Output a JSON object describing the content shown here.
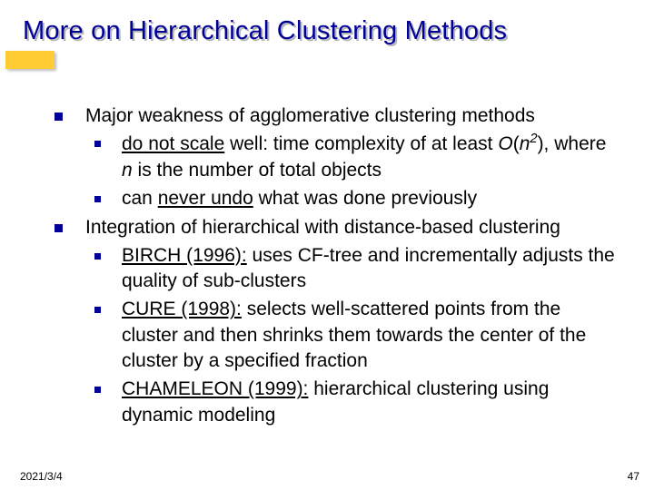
{
  "colors": {
    "title_color": "#000099",
    "bullet_color": "#000099",
    "accent_bg": "#ffcc33",
    "shadow_color": "#b5b5b5",
    "text_color": "#000000",
    "background": "#ffffff"
  },
  "typography": {
    "title_fontsize": 29,
    "body_fontsize": 21,
    "footer_fontsize": 12,
    "font_family": "Tahoma, Verdana, sans-serif"
  },
  "title": "More on Hierarchical Clustering Methods",
  "bullets": [
    {
      "text": "Major weakness of agglomerative clustering methods",
      "children": [
        {
          "segments": [
            {
              "t": "do not scale",
              "style": "underline"
            },
            {
              "t": " well: time complexity of at least "
            },
            {
              "t": "O",
              "style": "italic"
            },
            {
              "t": "("
            },
            {
              "t": "n",
              "style": "italic"
            },
            {
              "t": "2",
              "style": "sup"
            },
            {
              "t": "), where "
            },
            {
              "t": "n",
              "style": "italic"
            },
            {
              "t": " is the number of total objects"
            }
          ]
        },
        {
          "segments": [
            {
              "t": "can "
            },
            {
              "t": "never undo",
              "style": "underline"
            },
            {
              "t": " what was done previously"
            }
          ]
        }
      ]
    },
    {
      "text": "Integration of hierarchical with distance-based clustering",
      "children": [
        {
          "segments": [
            {
              "t": "BIRCH (1996):",
              "style": "underline"
            },
            {
              "t": " uses CF-tree and incrementally adjusts the quality of sub-clusters"
            }
          ]
        },
        {
          "segments": [
            {
              "t": "CURE (1998):",
              "style": "underline"
            },
            {
              "t": " selects well-scattered points from the cluster and then shrinks them towards the center of the cluster by a specified fraction"
            }
          ]
        },
        {
          "segments": [
            {
              "t": "CHAMELEON (1999):",
              "style": "underline"
            },
            {
              "t": " hierarchical clustering using dynamic modeling"
            }
          ]
        }
      ]
    }
  ],
  "footer": {
    "date": "2021/3/4",
    "page": "47"
  }
}
